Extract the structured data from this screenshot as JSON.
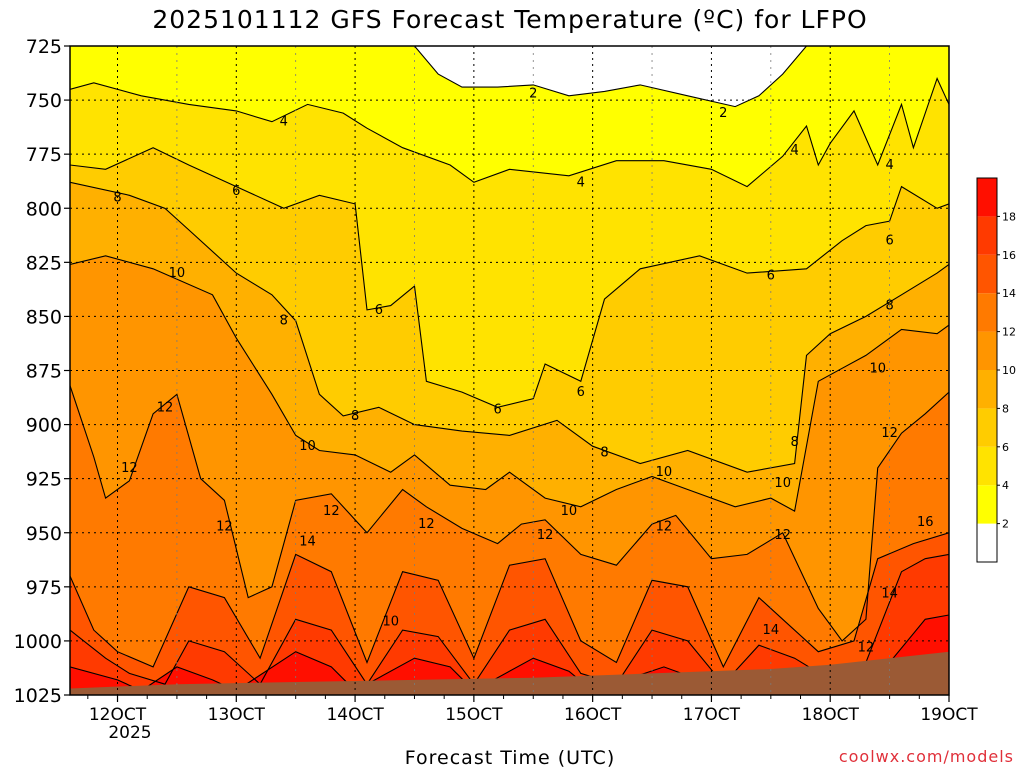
{
  "chart_data": {
    "type": "heatmap",
    "title": "2025101112 GFS Forecast Temperature (ºC) for LFPO",
    "xlabel": "Forecast Time (UTC)",
    "ylabel": "",
    "credit": "coolwx.com/models",
    "x_tick_labels": [
      "12OCT",
      "13OCT",
      "14OCT",
      "15OCT",
      "16OCT",
      "17OCT",
      "18OCT",
      "19OCT"
    ],
    "x_sub_label": "2025",
    "y_tick_labels": [
      725,
      750,
      775,
      800,
      825,
      850,
      875,
      900,
      925,
      950,
      975,
      1000,
      1025
    ],
    "ylim": [
      725,
      1025
    ],
    "y_axis_inverted": true,
    "grid": true,
    "legend": {
      "position": "right",
      "levels": [
        2,
        4,
        6,
        8,
        10,
        12,
        14,
        16,
        18
      ],
      "colors": [
        "#ffffff",
        "#ffff00",
        "#ffe300",
        "#ffcc00",
        "#ffb000",
        "#ff9500",
        "#ff7a00",
        "#ff5500",
        "#ff3a00",
        "#ff0f00"
      ]
    },
    "contour_labels": [
      {
        "value": "2",
        "x": "15.5OCT",
        "p": 747
      },
      {
        "value": "2",
        "x": "17.1OCT",
        "p": 756
      },
      {
        "value": "4",
        "x": "13.4OCT",
        "p": 760
      },
      {
        "value": "4",
        "x": "15.9OCT",
        "p": 788
      },
      {
        "value": "4",
        "x": "17.7OCT",
        "p": 773
      },
      {
        "value": "4",
        "x": "18.5OCT",
        "p": 780
      },
      {
        "value": "6",
        "x": "13.0OCT",
        "p": 792
      },
      {
        "value": "6",
        "x": "14.2OCT",
        "p": 847
      },
      {
        "value": "6",
        "x": "15.2OCT",
        "p": 893
      },
      {
        "value": "6",
        "x": "15.9OCT",
        "p": 885
      },
      {
        "value": "6",
        "x": "17.5OCT",
        "p": 831
      },
      {
        "value": "6",
        "x": "18.5OCT",
        "p": 815
      },
      {
        "value": "8",
        "x": "12.0OCT",
        "p": 795
      },
      {
        "value": "8",
        "x": "13.4OCT",
        "p": 852
      },
      {
        "value": "8",
        "x": "14.0OCT",
        "p": 896
      },
      {
        "value": "8",
        "x": "16.1OCT",
        "p": 913
      },
      {
        "value": "8",
        "x": "17.7OCT",
        "p": 908
      },
      {
        "value": "8",
        "x": "18.5OCT",
        "p": 845
      },
      {
        "value": "10",
        "x": "12.5OCT",
        "p": 830
      },
      {
        "value": "10",
        "x": "13.6OCT",
        "p": 910
      },
      {
        "value": "10",
        "x": "14.3OCT",
        "p": 991
      },
      {
        "value": "10",
        "x": "15.8OCT",
        "p": 940
      },
      {
        "value": "10",
        "x": "16.6OCT",
        "p": 922
      },
      {
        "value": "10",
        "x": "17.6OCT",
        "p": 927
      },
      {
        "value": "10",
        "x": "18.4OCT",
        "p": 874
      },
      {
        "value": "12",
        "x": "12.4OCT",
        "p": 892
      },
      {
        "value": "12",
        "x": "12.1OCT",
        "p": 920
      },
      {
        "value": "12",
        "x": "12.9OCT",
        "p": 947
      },
      {
        "value": "12",
        "x": "13.8OCT",
        "p": 940
      },
      {
        "value": "12",
        "x": "14.6OCT",
        "p": 946
      },
      {
        "value": "12",
        "x": "15.6OCT",
        "p": 951
      },
      {
        "value": "12",
        "x": "16.6OCT",
        "p": 947
      },
      {
        "value": "12",
        "x": "17.6OCT",
        "p": 951
      },
      {
        "value": "12",
        "x": "18.3OCT",
        "p": 1003
      },
      {
        "value": "12",
        "x": "18.5OCT",
        "p": 904
      },
      {
        "value": "14",
        "x": "13.6OCT",
        "p": 954
      },
      {
        "value": "14",
        "x": "17.5OCT",
        "p": 995
      },
      {
        "value": "14",
        "x": "18.5OCT",
        "p": 978
      },
      {
        "value": "16",
        "x": "18.8OCT",
        "p": 945
      }
    ]
  },
  "icons": {
    "legend_bar": "color-scale-bar"
  }
}
